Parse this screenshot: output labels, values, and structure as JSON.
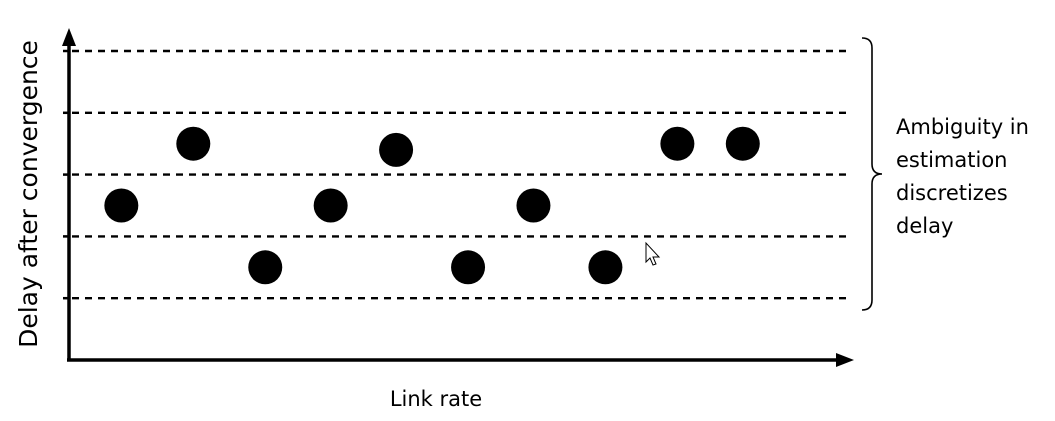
{
  "chart_data": {
    "type": "scatter",
    "xlabel": "Link rate",
    "ylabel": "Delay after convergence",
    "xlim": [
      0,
      12
    ],
    "ylim": [
      0,
      5
    ],
    "grid": true,
    "grid_levels": [
      1,
      2,
      3,
      4,
      5
    ],
    "points": [
      {
        "x": 0.8,
        "y": 2.5
      },
      {
        "x": 1.9,
        "y": 3.5
      },
      {
        "x": 3.0,
        "y": 1.5
      },
      {
        "x": 4.0,
        "y": 2.5
      },
      {
        "x": 5.0,
        "y": 3.4
      },
      {
        "x": 6.1,
        "y": 1.5
      },
      {
        "x": 7.1,
        "y": 2.5
      },
      {
        "x": 8.2,
        "y": 1.5
      },
      {
        "x": 9.3,
        "y": 3.5
      },
      {
        "x": 10.3,
        "y": 3.5
      }
    ],
    "annotation": {
      "lines": [
        "Ambiguity in",
        "estimation",
        "discretizes",
        "delay"
      ]
    }
  },
  "colors": {
    "marker": "#000000",
    "axis": "#000000",
    "background": "#ffffff"
  }
}
